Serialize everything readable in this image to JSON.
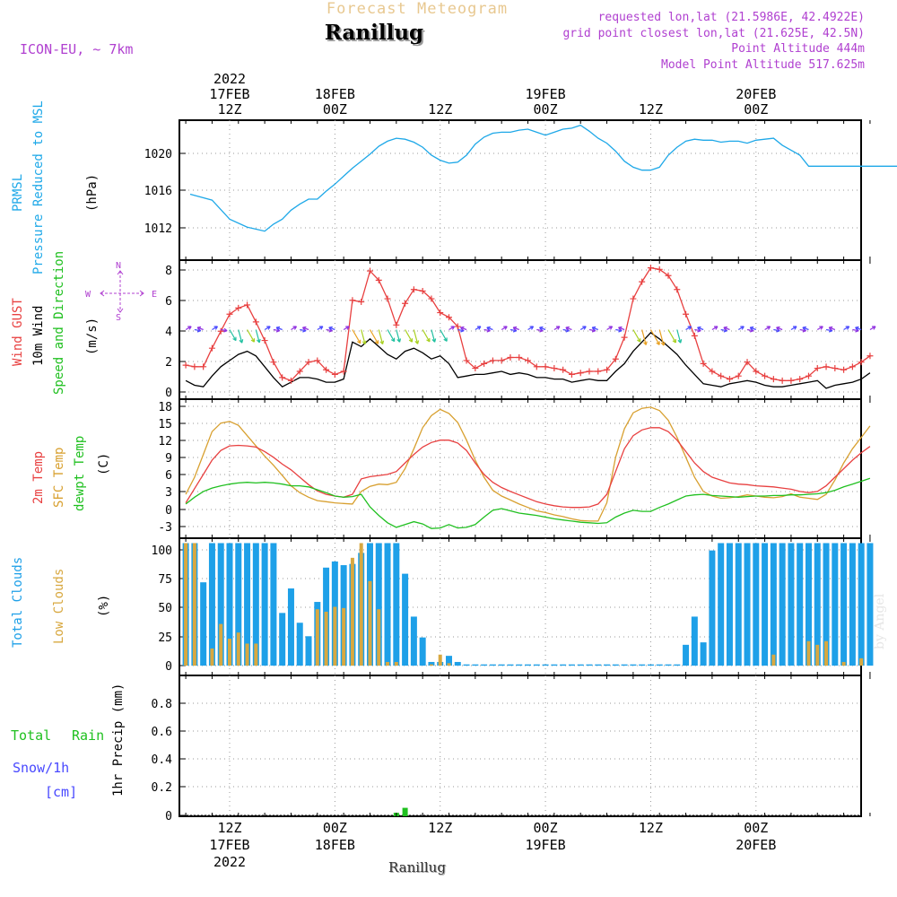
{
  "header": {
    "subtitle": "Forecast Meteogram",
    "location": "Ranillug",
    "model": "ICON-EU, ~ 7km",
    "requested": "requested lon,lat (21.5986E, 42.4922E)",
    "grid_point": "grid point closest lon,lat (21.625E, 42.5N)",
    "point_altitude": "Point Altitude 444m",
    "model_altitude": "Model Point Altitude 517.625m"
  },
  "footer": {
    "location": "Ranillug",
    "credit": "by Angel"
  },
  "colors": {
    "pressure": "#1ea8e8",
    "gust": "#e84040",
    "wind": "#000000",
    "temp": "#e84040",
    "sfc_temp": "#d8a030",
    "dewpt": "#20c020",
    "total_clouds": "#1ea0e8",
    "low_clouds": "#d8a840",
    "rain": "#20c020",
    "snow": "#4848ff",
    "arrow_legend": "#b040d0",
    "title_tan": "#e8c890"
  },
  "time_axis": {
    "top": [
      {
        "line1": "2022",
        "line2": "17FEB",
        "line3": "12Z"
      },
      {
        "line1": "",
        "line2": "18FEB",
        "line3": "00Z"
      },
      {
        "line1": "",
        "line2": "",
        "line3": "12Z"
      },
      {
        "line1": "",
        "line2": "19FEB",
        "line3": "00Z"
      },
      {
        "line1": "",
        "line2": "",
        "line3": "12Z"
      },
      {
        "line1": "",
        "line2": "20FEB",
        "line3": "00Z"
      }
    ],
    "bottom": [
      {
        "line1": "12Z",
        "line2": "17FEB",
        "line3": "2022"
      },
      {
        "line1": "00Z",
        "line2": "18FEB",
        "line3": ""
      },
      {
        "line1": "12Z",
        "line2": "",
        "line3": ""
      },
      {
        "line1": "00Z",
        "line2": "19FEB",
        "line3": ""
      },
      {
        "line1": "12Z",
        "line2": "",
        "line3": ""
      },
      {
        "line1": "00Z",
        "line2": "20FEB",
        "line3": ""
      }
    ]
  },
  "panel_labels": {
    "pressure": {
      "label1": "PRMSL",
      "label2": "Pressure Reduced to MSL",
      "unit": "(hPa)"
    },
    "wind": {
      "label1": "Wind GUST",
      "label2": "10m Wind",
      "label3": "Speed and Direction",
      "unit": "(m/s)",
      "compass_n": "N",
      "compass_s": "S",
      "compass_w": "W",
      "compass_e": "E"
    },
    "temp": {
      "label1": "2m Temp",
      "label2": "SFC Temp",
      "label3": "dewpt Temp",
      "unit": "(C)"
    },
    "clouds": {
      "label1": "Total Clouds",
      "label2": "Low Clouds",
      "unit": "(%)"
    },
    "precip": {
      "label1": "Total",
      "label1b": "Rain",
      "label2": "Snow/1h",
      "label3": "[cm]",
      "unit": "1hr Precip (mm)"
    }
  },
  "chart_data": [
    {
      "type": "line",
      "panel": "pressure",
      "ylim": [
        1008.8,
        1022.8
      ],
      "yticks": [
        "1012",
        "1016",
        "1020"
      ],
      "x_hours_from_17FEB12Z": [
        -4.5,
        -2,
        0,
        2,
        4,
        5,
        6,
        7,
        8,
        9,
        10,
        11,
        12,
        13,
        14,
        15,
        16,
        17,
        18,
        19,
        20,
        21,
        22,
        23,
        24,
        25,
        26,
        27,
        28,
        29,
        30,
        31,
        32,
        33,
        34,
        35,
        36,
        37,
        38,
        39,
        40,
        41,
        42,
        43,
        44,
        45,
        46,
        47,
        48,
        49,
        50,
        51,
        52,
        53,
        54,
        55,
        56,
        57,
        58,
        59,
        60,
        61,
        62,
        63,
        64,
        65,
        66,
        67,
        68,
        69,
        70,
        71,
        72,
        73,
        74,
        75,
        76,
        77,
        78
      ],
      "series": [
        {
          "values": [
            1015.4,
            1014.8,
            1012.9,
            1012.1,
            1011.7,
            1012.4,
            1012.9,
            1013.8,
            1014.4,
            1014.9,
            1014.9,
            1015.7,
            1016.4,
            1017.2,
            1018.0,
            1018.7,
            1019.4,
            1020.2,
            1020.7,
            1021.0,
            1020.9,
            1020.6,
            1020.1,
            1019.3,
            1018.8,
            1018.5,
            1018.6,
            1019.3,
            1020.4,
            1021.1,
            1021.5,
            1021.6,
            1021.6,
            1021.8,
            1021.9,
            1021.6,
            1021.3,
            1021.6,
            1021.9,
            1022.0,
            1022.3,
            1021.7,
            1021.0,
            1020.5,
            1019.7,
            1018.7,
            1018.1,
            1017.8,
            1017.8,
            1018.1,
            1019.3,
            1020.1,
            1020.7,
            1020.9,
            1020.8,
            1020.8,
            1020.6,
            1020.7,
            1020.7,
            1020.5,
            1020.8,
            1020.9,
            1021.0,
            1020.3,
            1019.8,
            1019.3,
            1018.2,
            1018.2,
            1018.2,
            1018.2,
            1018.2,
            1018.2,
            1018.2,
            1018.2,
            1018.2,
            1018.2,
            1018.2,
            1018.2,
            1018.2
          ]
        }
      ]
    },
    {
      "type": "line",
      "panel": "wind",
      "ylim": [
        -0.5,
        8.5
      ],
      "yticks": [
        "0",
        "2",
        "4",
        "6",
        "8"
      ],
      "x_hours_from_17FEB12Z": [
        -5,
        -4,
        -3,
        -2,
        -1,
        0,
        1,
        2,
        3,
        4,
        5,
        6,
        7,
        8,
        9,
        10,
        11,
        12,
        13,
        14,
        15,
        16,
        17,
        18,
        19,
        20,
        21,
        22,
        23,
        24,
        25,
        26,
        27,
        28,
        29,
        30,
        31,
        32,
        33,
        34,
        35,
        36,
        37,
        38,
        39,
        40,
        41,
        42,
        43,
        44,
        45,
        46,
        47,
        48,
        49,
        50,
        51,
        52,
        53,
        54,
        55,
        56,
        57,
        58,
        59,
        60,
        61,
        62,
        63,
        64,
        65,
        66,
        67,
        68,
        69,
        70,
        71,
        72,
        73
      ],
      "series": [
        {
          "name": "Wind GUST",
          "values": [
            1.7,
            1.6,
            1.6,
            2.8,
            3.9,
            5.0,
            5.4,
            5.6,
            4.5,
            3.3,
            1.9,
            0.9,
            0.7,
            1.3,
            1.9,
            2.0,
            1.4,
            1.1,
            1.3,
            5.9,
            5.8,
            7.8,
            7.2,
            6.0,
            4.3,
            5.7,
            6.6,
            6.5,
            6.0,
            5.1,
            4.8,
            4.2,
            2.0,
            1.5,
            1.8,
            2.0,
            2.0,
            2.2,
            2.2,
            2.0,
            1.6,
            1.6,
            1.5,
            1.4,
            1.1,
            1.2,
            1.3,
            1.3,
            1.4,
            2.1,
            3.5,
            6.0,
            7.1,
            8.0,
            7.9,
            7.5,
            6.6,
            5.0,
            3.6,
            1.8,
            1.3,
            1.0,
            0.8,
            1.0,
            1.9,
            1.3,
            1.0,
            0.8,
            0.7,
            0.7,
            0.8,
            1.0,
            1.5,
            1.6,
            1.5,
            1.4,
            1.6,
            1.9,
            2.3
          ]
        },
        {
          "name": "10m Wind",
          "values": [
            0.7,
            0.4,
            0.3,
            1.0,
            1.6,
            2.0,
            2.4,
            2.6,
            2.3,
            1.6,
            0.9,
            0.3,
            0.6,
            0.9,
            0.9,
            0.8,
            0.6,
            0.6,
            0.8,
            3.2,
            2.9,
            3.4,
            2.9,
            2.4,
            2.1,
            2.6,
            2.8,
            2.5,
            2.1,
            2.3,
            1.8,
            0.9,
            1.0,
            1.1,
            1.1,
            1.2,
            1.3,
            1.1,
            1.2,
            1.1,
            0.9,
            0.9,
            0.8,
            0.8,
            0.6,
            0.7,
            0.8,
            0.7,
            0.7,
            1.3,
            1.8,
            2.6,
            3.2,
            3.8,
            3.4,
            2.9,
            2.4,
            1.7,
            1.1,
            0.5,
            0.4,
            0.3,
            0.5,
            0.6,
            0.7,
            0.6,
            0.4,
            0.3,
            0.3,
            0.4,
            0.5,
            0.6,
            0.7,
            0.2,
            0.4,
            0.5,
            0.6,
            0.8,
            1.2
          ]
        }
      ]
    },
    {
      "type": "line",
      "panel": "temp",
      "ylim": [
        -5.2,
        19.2
      ],
      "yticks": [
        "-3",
        "0",
        "3",
        "6",
        "9",
        "12",
        "15",
        "18"
      ],
      "x_hours_from_17FEB12Z": [
        -5,
        -4,
        -3,
        -2,
        -1,
        0,
        1,
        2,
        3,
        4,
        5,
        6,
        7,
        8,
        9,
        10,
        11,
        12,
        13,
        14,
        15,
        16,
        17,
        18,
        19,
        20,
        21,
        22,
        23,
        24,
        25,
        26,
        27,
        28,
        29,
        30,
        31,
        32,
        33,
        34,
        35,
        36,
        37,
        38,
        39,
        40,
        41,
        42,
        43,
        44,
        45,
        46,
        47,
        48,
        49,
        50,
        51,
        52,
        53,
        54,
        55,
        56,
        57,
        58,
        59,
        60,
        61,
        62,
        63,
        64,
        65,
        66,
        67,
        68,
        69,
        70,
        71,
        72,
        73
      ],
      "series": [
        {
          "name": "2m Temp",
          "values": [
            1.0,
            3.5,
            6.0,
            8.5,
            10.2,
            11.0,
            11.1,
            11.0,
            10.8,
            10.0,
            9.0,
            7.8,
            6.8,
            5.5,
            4.2,
            3.1,
            2.5,
            2.2,
            2.0,
            2.5,
            5.2,
            5.6,
            5.8,
            6.0,
            6.5,
            8.0,
            9.5,
            10.8,
            11.6,
            12.0,
            12.0,
            11.5,
            10.2,
            8.0,
            6.0,
            4.6,
            3.7,
            3.0,
            2.4,
            1.8,
            1.2,
            0.8,
            0.5,
            0.3,
            0.2,
            0.2,
            0.3,
            0.8,
            2.5,
            6.5,
            10.5,
            12.8,
            13.8,
            14.2,
            14.2,
            13.5,
            12.0,
            10.0,
            8.0,
            6.5,
            5.5,
            5.0,
            4.5,
            4.3,
            4.2,
            4.0,
            3.9,
            3.8,
            3.6,
            3.4,
            3.0,
            2.8,
            3.0,
            4.0,
            5.5,
            7.0,
            8.5,
            9.8,
            10.9
          ]
        },
        {
          "name": "SFC Temp",
          "values": [
            2.5,
            5.5,
            9.5,
            13.5,
            15.0,
            15.3,
            14.6,
            12.8,
            11.0,
            9.2,
            7.6,
            5.8,
            4.0,
            2.8,
            2.0,
            1.4,
            1.2,
            1.0,
            0.9,
            0.8,
            3.0,
            3.9,
            4.3,
            4.2,
            4.6,
            7.0,
            10.5,
            14.2,
            16.3,
            17.4,
            16.7,
            15.1,
            12.0,
            8.5,
            5.5,
            3.2,
            2.2,
            1.5,
            0.8,
            0.2,
            -0.4,
            -0.7,
            -1.1,
            -1.4,
            -1.8,
            -2.1,
            -2.2,
            -2.2,
            1.0,
            9.0,
            14.0,
            16.8,
            17.6,
            17.8,
            17.2,
            15.5,
            12.5,
            9.0,
            5.5,
            3.0,
            2.2,
            1.8,
            1.9,
            2.1,
            2.4,
            2.2,
            2.0,
            1.9,
            2.1,
            2.6,
            2.0,
            1.8,
            1.6,
            2.5,
            5.0,
            8.0,
            10.5,
            12.5,
            14.5
          ]
        },
        {
          "name": "dewpt Temp",
          "values": [
            0.8,
            2.0,
            3.0,
            3.6,
            4.0,
            4.3,
            4.5,
            4.6,
            4.5,
            4.6,
            4.5,
            4.3,
            4.0,
            4.0,
            3.8,
            3.3,
            2.8,
            2.2,
            2.0,
            2.1,
            2.5,
            0.3,
            -1.2,
            -2.5,
            -3.3,
            -2.8,
            -2.3,
            -2.7,
            -3.5,
            -3.4,
            -2.8,
            -3.4,
            -3.3,
            -2.8,
            -1.5,
            -0.3,
            0.0,
            -0.4,
            -0.8,
            -1.0,
            -1.2,
            -1.5,
            -1.8,
            -2.0,
            -2.2,
            -2.4,
            -2.5,
            -2.6,
            -2.5,
            -1.5,
            -0.8,
            -0.3,
            -0.5,
            -0.5,
            0.2,
            0.8,
            1.5,
            2.2,
            2.4,
            2.5,
            2.3,
            2.2,
            2.1,
            2.0,
            2.1,
            2.2,
            2.2,
            2.3,
            2.3,
            2.4,
            2.4,
            2.5,
            2.6,
            2.8,
            3.2,
            3.8,
            4.3,
            4.8,
            5.3
          ]
        }
      ]
    },
    {
      "type": "bar",
      "panel": "clouds",
      "ylim": [
        -8,
        104
      ],
      "yticks": [
        "0",
        "25",
        "50",
        "75",
        "100"
      ],
      "x_hours_from_17FEB12Z": [
        -5,
        -4,
        -3,
        -2,
        -1,
        0,
        1,
        2,
        3,
        4,
        5,
        6,
        7,
        8,
        9,
        10,
        11,
        12,
        13,
        14,
        15,
        16,
        17,
        18,
        19,
        20,
        21,
        22,
        23,
        24,
        25,
        26,
        27,
        28,
        29,
        30,
        31,
        32,
        33,
        34,
        35,
        36,
        37,
        38,
        39,
        40,
        41,
        42,
        43,
        44,
        45,
        46,
        47,
        48,
        49,
        50,
        51,
        52,
        53,
        54,
        55,
        56,
        57,
        58,
        59,
        60,
        61,
        62,
        63,
        64,
        65,
        66,
        67,
        68,
        69,
        70,
        71,
        72,
        73
      ],
      "series": [
        {
          "name": "Total Clouds",
          "values": [
            100,
            100,
            68,
            100,
            100,
            100,
            100,
            100,
            100,
            100,
            100,
            43,
            63,
            35,
            24,
            52,
            80,
            85,
            82,
            83,
            92,
            100,
            100,
            100,
            100,
            75,
            40,
            23,
            3,
            3,
            8,
            3,
            1,
            1,
            1,
            1,
            1,
            1,
            1,
            1,
            1,
            1,
            1,
            1,
            1,
            1,
            1,
            1,
            1,
            1,
            1,
            1,
            1,
            1,
            1,
            1,
            1,
            17,
            40,
            19,
            94,
            100,
            100,
            100,
            100,
            100,
            100,
            100,
            100,
            100,
            100,
            100,
            100,
            100,
            100,
            100,
            100,
            100,
            100
          ]
        },
        {
          "name": "Low Clouds",
          "values": [
            100,
            100,
            0,
            14,
            34,
            22,
            27,
            18,
            18,
            0,
            0,
            0,
            0,
            0,
            0,
            46,
            44,
            48,
            47,
            88,
            100,
            69,
            46,
            3,
            3,
            0,
            0,
            0,
            1,
            9,
            2,
            0,
            0,
            0,
            0,
            0,
            0,
            0,
            0,
            0,
            0,
            0,
            0,
            0,
            0,
            0,
            0,
            0,
            0,
            0,
            0,
            0,
            0,
            0,
            0,
            0,
            0,
            0,
            0,
            0,
            0,
            0,
            0,
            0,
            0,
            0,
            0,
            9,
            0,
            0,
            0,
            20,
            17,
            20,
            0,
            3,
            0,
            6,
            0
          ]
        }
      ]
    },
    {
      "type": "bar",
      "panel": "precip",
      "ylim": [
        0,
        1.0
      ],
      "yticks": [
        "0",
        "0.2",
        "0.4",
        "0.6",
        "0.8"
      ],
      "x_hours_from_17FEB12Z": [
        19,
        20
      ],
      "series": [
        {
          "name": "Total Rain",
          "values": [
            0.025,
            0.06
          ]
        },
        {
          "name": "Snow/1h",
          "values": [
            0,
            0
          ]
        }
      ]
    }
  ]
}
